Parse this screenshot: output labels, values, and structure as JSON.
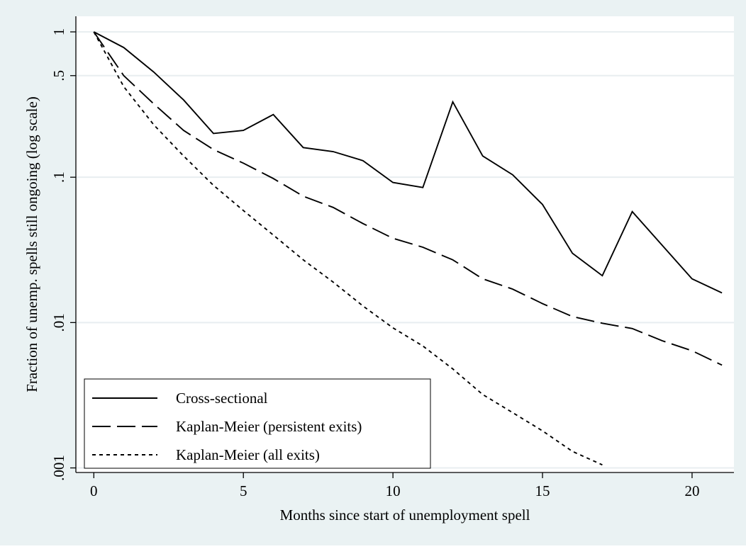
{
  "chart_data": {
    "type": "line",
    "title": "",
    "xlabel": "Months since start of unemployment spell",
    "ylabel": "Fraction of unemp. spells still ongoing (log scale)",
    "yscale": "log",
    "xlim": [
      -0.6,
      21.4
    ],
    "ylim": [
      0.00093,
      1.28
    ],
    "x_ticks": [
      0,
      5,
      10,
      15,
      20
    ],
    "x_tick_labels": [
      "0",
      "5",
      "10",
      "15",
      "20"
    ],
    "y_ticks": [
      1,
      0.5,
      0.1,
      0.01,
      0.001
    ],
    "y_tick_labels": [
      "1",
      ".5",
      ".1",
      ".01",
      ".001"
    ],
    "grid": true,
    "legend_position": "bottom-left",
    "background": "#eaf2f3",
    "series": [
      {
        "name": "Cross-sectional",
        "dash": "solid",
        "x": [
          0,
          1,
          2,
          3,
          4,
          5,
          6,
          7,
          8,
          9,
          10,
          11,
          12,
          13,
          14,
          15,
          16,
          17,
          18,
          19,
          20,
          21
        ],
        "y": [
          1,
          0.78,
          0.53,
          0.34,
          0.2,
          0.21,
          0.27,
          0.16,
          0.15,
          0.13,
          0.092,
          0.085,
          0.33,
          0.14,
          0.104,
          0.065,
          0.03,
          0.021,
          0.058,
          0.034,
          0.02,
          0.016
        ]
      },
      {
        "name": "Kaplan-Meier (persistent exits)",
        "dash": "long-dash",
        "x": [
          0,
          1,
          2,
          3,
          4,
          5,
          6,
          7,
          8,
          9,
          10,
          11,
          12,
          13,
          14,
          15,
          16,
          17,
          18,
          19,
          20,
          21
        ],
        "y": [
          1,
          0.5,
          0.32,
          0.21,
          0.155,
          0.125,
          0.098,
          0.074,
          0.062,
          0.048,
          0.038,
          0.033,
          0.027,
          0.02,
          0.017,
          0.0135,
          0.011,
          0.0099,
          0.0091,
          0.0075,
          0.0064,
          0.0051
        ]
      },
      {
        "name": "Kaplan-Meier (all exits)",
        "dash": "short-dash",
        "x": [
          0,
          1,
          2,
          3,
          4,
          5,
          6,
          7,
          8,
          9,
          10,
          11,
          12,
          13,
          14,
          15,
          16,
          17
        ],
        "y": [
          1,
          0.42,
          0.23,
          0.14,
          0.088,
          0.059,
          0.04,
          0.027,
          0.019,
          0.013,
          0.0092,
          0.0069,
          0.0048,
          0.0032,
          0.0024,
          0.0018,
          0.0013,
          0.00105
        ]
      }
    ]
  }
}
